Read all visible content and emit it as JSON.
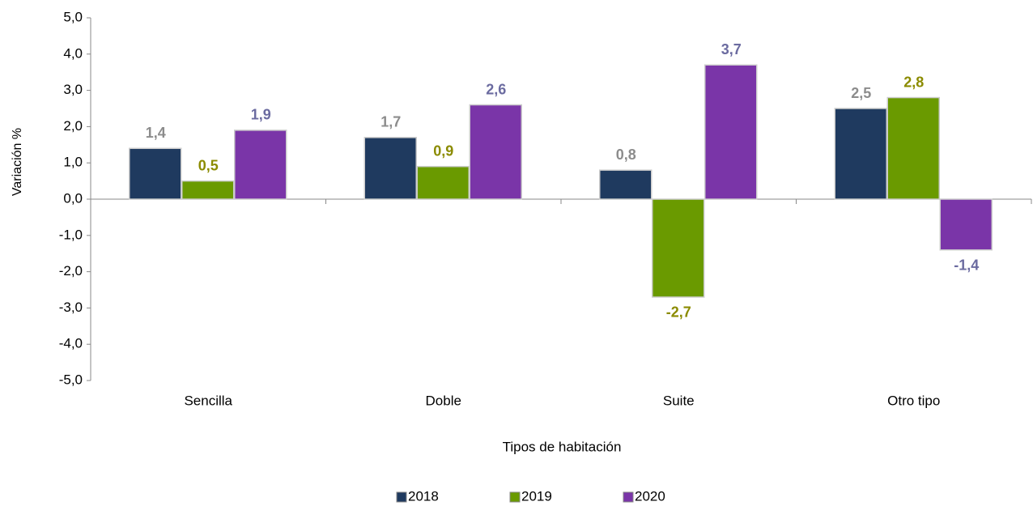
{
  "chart_data": {
    "type": "bar",
    "x_label": "Tipos de habitación",
    "y_label": "Variación %",
    "categories": [
      "Sencilla",
      "Doble",
      "Suite",
      "Otro tipo"
    ],
    "series": [
      {
        "name": "2018",
        "color": "#1f3a5f",
        "label_color": "#8c8c8c",
        "values": [
          1.4,
          1.7,
          0.8,
          2.5
        ],
        "value_labels": [
          "1,4",
          "1,7",
          "0,8",
          "2,5"
        ]
      },
      {
        "name": "2019",
        "color": "#6a9a00",
        "label_color": "#8b8b00",
        "values": [
          0.5,
          0.9,
          -2.7,
          2.8
        ],
        "value_labels": [
          "0,5",
          "0,9",
          "-2,7",
          "2,8"
        ]
      },
      {
        "name": "2020",
        "color": "#7a35a8",
        "label_color": "#6b6ba0",
        "values": [
          1.9,
          2.6,
          3.7,
          -1.4
        ],
        "value_labels": [
          "1,9",
          "2,6",
          "3,7",
          "-1,4"
        ]
      }
    ],
    "ylim": [
      -5,
      5
    ],
    "yticks": [
      {
        "value": -5,
        "label": "-5,0"
      },
      {
        "value": -4,
        "label": "-4,0"
      },
      {
        "value": -3,
        "label": "-3,0"
      },
      {
        "value": -2,
        "label": "-2,0"
      },
      {
        "value": -1,
        "label": "-1,0"
      },
      {
        "value": 0,
        "label": "0,0"
      },
      {
        "value": 1,
        "label": "1,0"
      },
      {
        "value": 2,
        "label": "2,0"
      },
      {
        "value": 3,
        "label": "3,0"
      },
      {
        "value": 4,
        "label": "4,0"
      },
      {
        "value": 5,
        "label": "5,0"
      }
    ],
    "legend": "bottom"
  }
}
